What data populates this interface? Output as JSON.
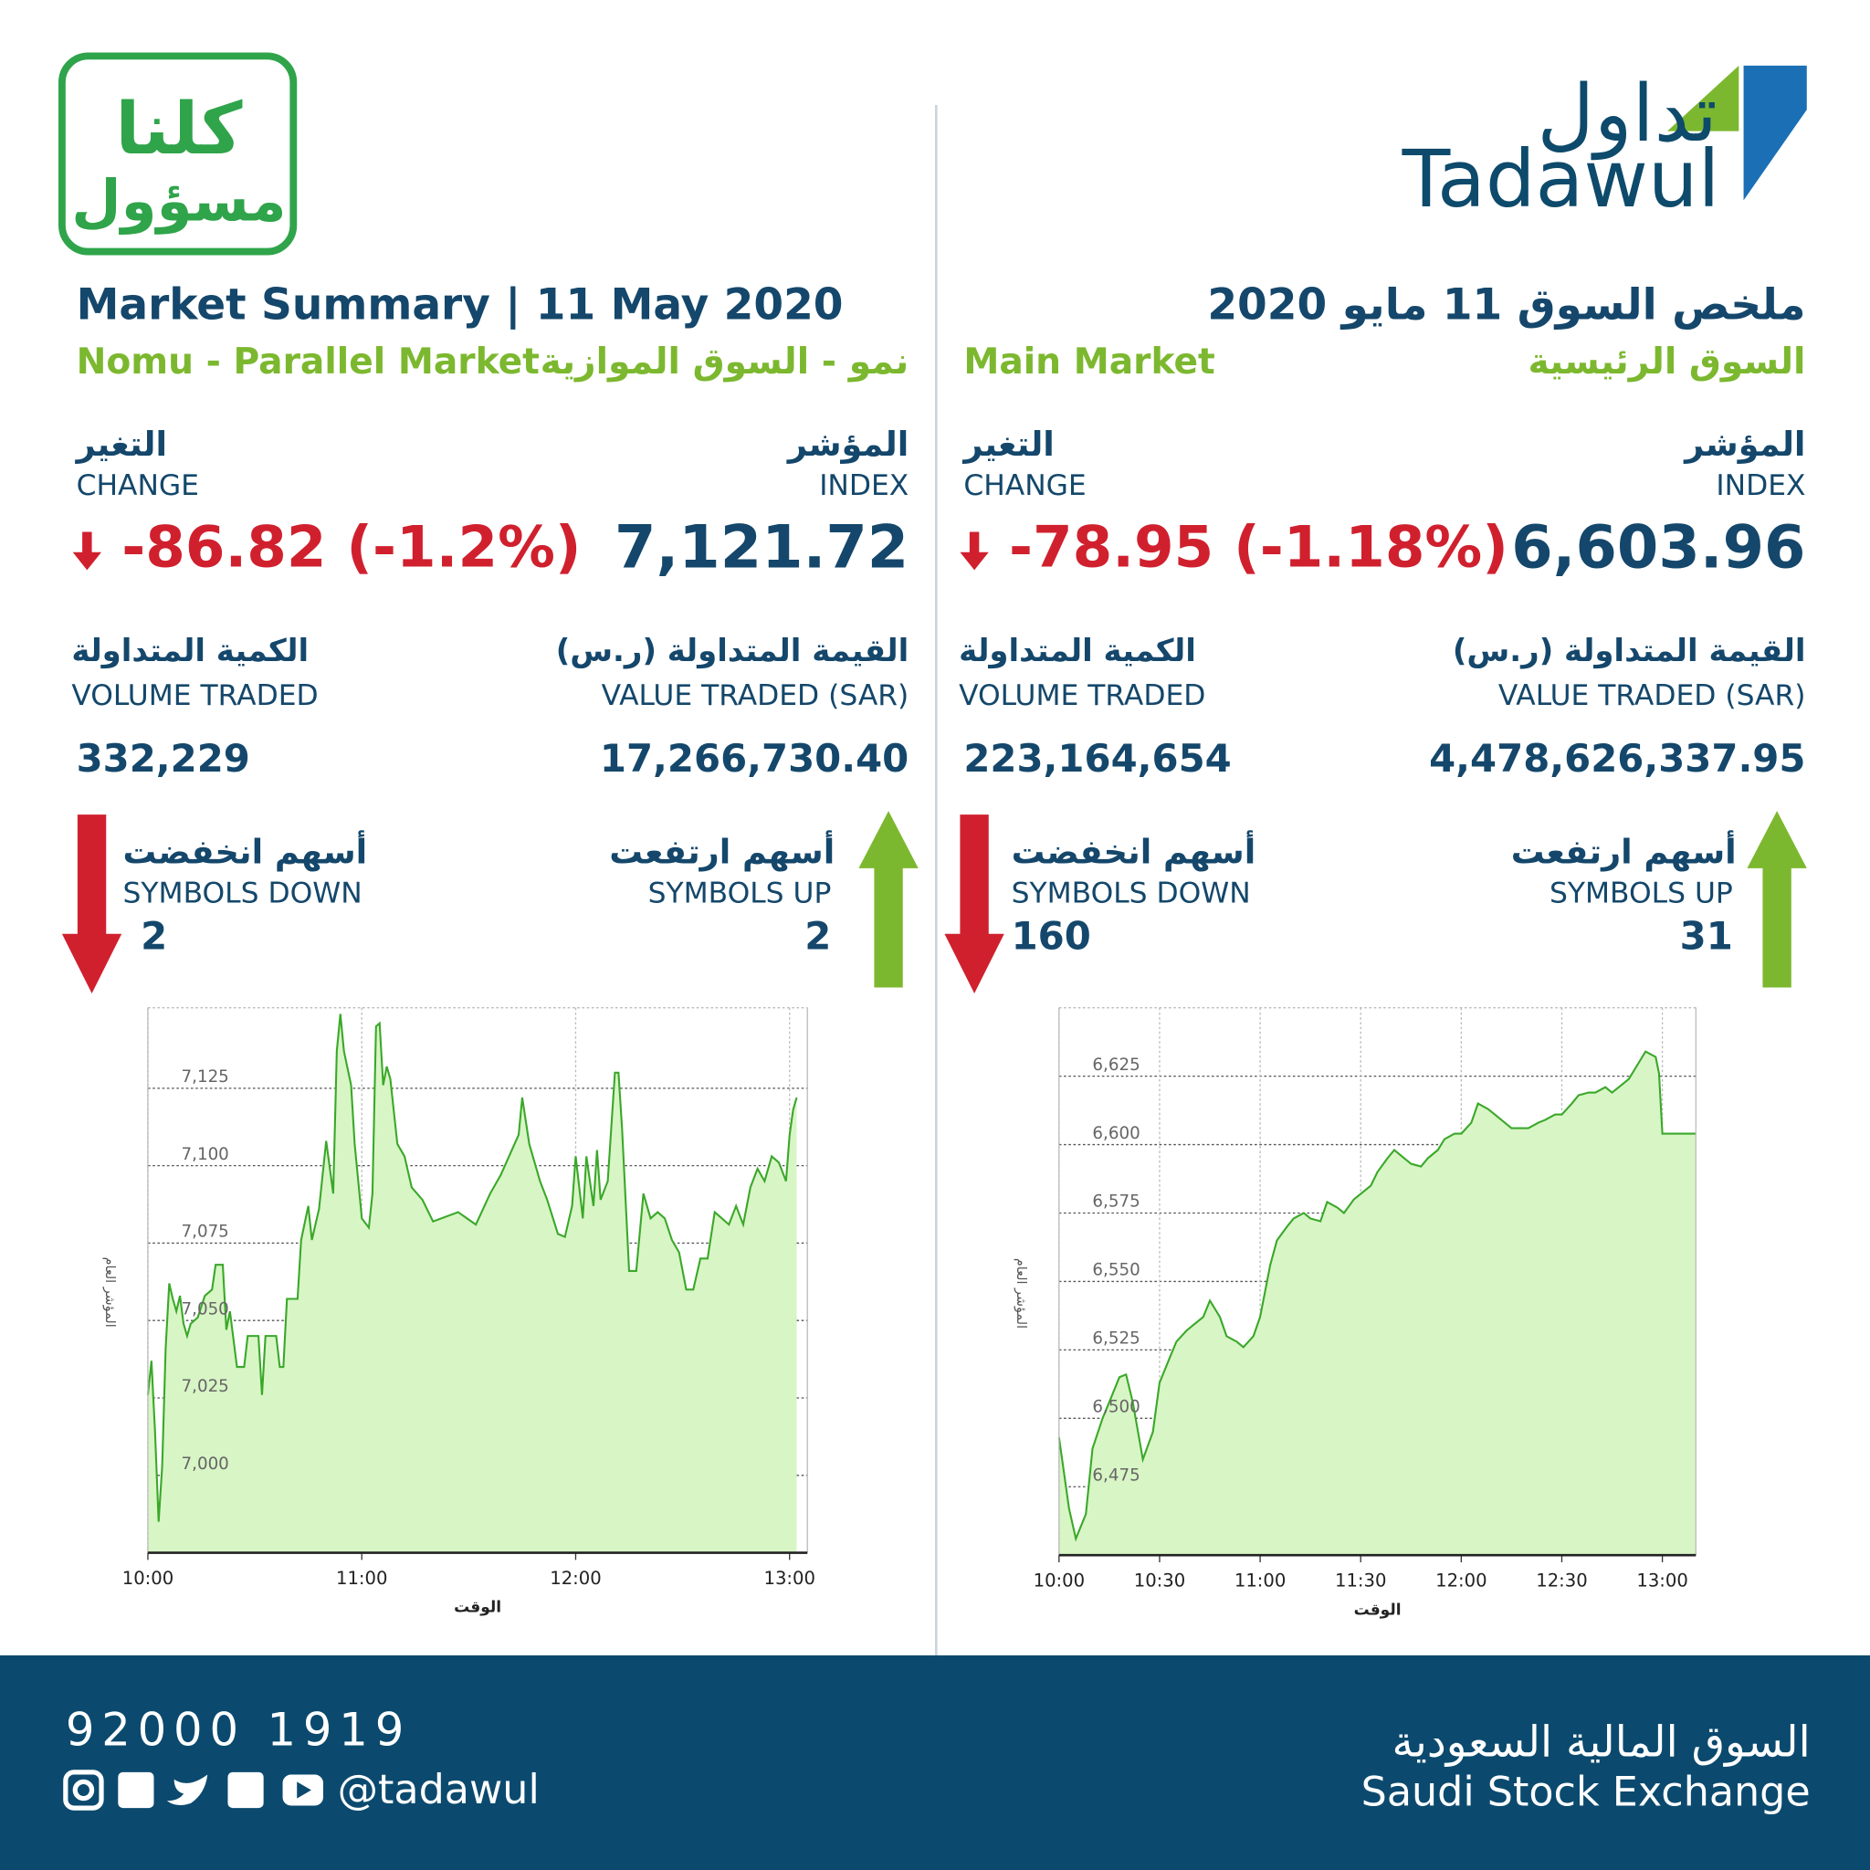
{
  "header": {
    "campaign_logo": [
      "كلنا",
      "مسؤول"
    ],
    "logo_ar": "تداول",
    "logo_en": "Tadawul",
    "title_en": "Market Summary | 11 May 2020",
    "title_ar": "ملخص السوق 11 مايو 2020"
  },
  "markets": [
    {
      "name_en": "Nomu - Parallel Market",
      "name_ar": "نمو - السوق الموازية",
      "index_label_ar": "المؤشر",
      "index_label_en": "INDEX",
      "index": "7,121.72",
      "change_label_ar": "التغير",
      "change_label_en": "CHANGE",
      "change": "-86.82 (-1.2%)",
      "value_label_ar": "القيمة المتداولة (ر.س)",
      "value_label_en": "VALUE TRADED (SAR)",
      "value": "17,266,730.40",
      "volume_label_ar": "الكمية المتداولة",
      "volume_label_en": "VOLUME TRADED",
      "volume": "332,229",
      "up_label_ar": "أسهم ارتفعت",
      "up_label_en": "SYMBOLS UP",
      "up": "2",
      "down_label_ar": "أسهم انخفضت",
      "down_label_en": "SYMBOLS DOWN",
      "down": "2"
    },
    {
      "name_en": "Main Market",
      "name_ar": "السوق الرئيسية",
      "index_label_ar": "المؤشر",
      "index_label_en": "INDEX",
      "index": "6,603.96",
      "change_label_ar": "التغير",
      "change_label_en": "CHANGE",
      "change": "-78.95 (-1.18%)",
      "value_label_ar": "القيمة المتداولة (ر.س)",
      "value_label_en": "VALUE TRADED (SAR)",
      "value": "4,478,626,337.95",
      "volume_label_ar": "الكمية المتداولة",
      "volume_label_en": "VOLUME TRADED",
      "volume": "223,164,654",
      "up_label_ar": "أسهم ارتفعت",
      "up_label_en": "SYMBOLS UP",
      "up": "31",
      "down_label_ar": "أسهم انخفضت",
      "down_label_en": "SYMBOLS DOWN",
      "down": "160"
    }
  ],
  "chart_data": [
    {
      "type": "line",
      "xlabel": "الوقت",
      "ylabel": "المؤشر العام",
      "color": "#3aa829",
      "fill": "#d8f5c6",
      "grid": true,
      "x": [
        "10:00",
        "10:01",
        "10:02",
        "10:03",
        "10:04",
        "10:05",
        "10:06",
        "10:07",
        "10:08",
        "10:09",
        "10:10",
        "10:11",
        "10:12",
        "10:14",
        "10:16",
        "10:18",
        "10:19",
        "10:21",
        "10:22",
        "10:23",
        "10:25",
        "10:27",
        "10:28",
        "10:31",
        "10:32",
        "10:33",
        "10:36",
        "10:37",
        "10:38",
        "10:39",
        "10:42",
        "10:43",
        "10:45",
        "10:46",
        "10:48",
        "10:50",
        "10:52",
        "10:53",
        "10:54",
        "10:55",
        "10:57",
        "10:58",
        "11:00",
        "11:02",
        "11:03",
        "11:04",
        "11:05",
        "11:06",
        "11:07",
        "11:08",
        "11:10",
        "11:12",
        "11:14",
        "11:17",
        "11:20",
        "11:27",
        "11:32",
        "11:36",
        "11:39",
        "11:44",
        "11:45",
        "11:47",
        "11:50",
        "11:52",
        "11:55",
        "11:57",
        "11:59",
        "12:00",
        "12:02",
        "12:03",
        "12:05",
        "12:06",
        "12:07",
        "12:09",
        "12:11",
        "12:12",
        "12:13",
        "12:15",
        "12:17",
        "12:19",
        "12:21",
        "12:23",
        "12:25",
        "12:27",
        "12:29",
        "12:31",
        "12:33",
        "12:35",
        "12:37",
        "12:39",
        "12:41",
        "12:43",
        "12:45",
        "12:47",
        "12:49",
        "12:51",
        "12:53",
        "12:55",
        "12:57",
        "12:59",
        "13:00",
        "13:01",
        "13:02"
      ],
      "values": [
        7026,
        7037,
        7014,
        6985,
        7003,
        7041,
        7062,
        7057,
        7053,
        7058,
        7049,
        7045,
        7049,
        7051,
        7058,
        7060,
        7068,
        7068,
        7047,
        7053,
        7035,
        7035,
        7045,
        7045,
        7026,
        7045,
        7045,
        7035,
        7035,
        7057,
        7057,
        7076,
        7087,
        7076,
        7086,
        7108,
        7091,
        7137,
        7149,
        7137,
        7126,
        7107,
        7083,
        7080,
        7091,
        7145,
        7146,
        7126,
        7132,
        7128,
        7107,
        7103,
        7093,
        7089,
        7082,
        7085,
        7081,
        7091,
        7097,
        7110,
        7122,
        7107,
        7095,
        7089,
        7078,
        7077,
        7087,
        7103,
        7083,
        7103,
        7087,
        7105,
        7089,
        7095,
        7130,
        7130,
        7112,
        7066,
        7066,
        7091,
        7083,
        7085,
        7083,
        7076,
        7072,
        7060,
        7060,
        7070,
        7070,
        7085,
        7083,
        7081,
        7087,
        7081,
        7093,
        7099,
        7095,
        7103,
        7101,
        7095,
        7110,
        7118,
        7122
      ],
      "xlim": [
        "10:00",
        "13:05"
      ],
      "xticks": [
        "10:00",
        "11:00",
        "12:00",
        "13:00"
      ],
      "ylim": [
        6975,
        7151
      ],
      "yticks": [
        {
          "value": 7000,
          "label": "7,000"
        },
        {
          "value": 7025,
          "label": "7,025"
        },
        {
          "value": 7050,
          "label": "7,050"
        },
        {
          "value": 7075,
          "label": "7,075"
        },
        {
          "value": 7100,
          "label": "7,100"
        },
        {
          "value": 7125,
          "label": "7,125"
        }
      ]
    },
    {
      "type": "line",
      "xlabel": "الوقت",
      "ylabel": "المؤشر العام",
      "color": "#3aa829",
      "fill": "#d8f5c6",
      "grid": true,
      "x": [
        "10:00",
        "10:03",
        "10:05",
        "10:08",
        "10:10",
        "10:13",
        "10:15",
        "10:18",
        "10:20",
        "10:22",
        "10:25",
        "10:28",
        "10:30",
        "10:33",
        "10:35",
        "10:38",
        "10:40",
        "10:43",
        "10:45",
        "10:48",
        "10:50",
        "10:53",
        "10:55",
        "10:58",
        "11:00",
        "11:03",
        "11:05",
        "11:08",
        "11:10",
        "11:13",
        "11:15",
        "11:18",
        "11:20",
        "11:23",
        "11:25",
        "11:28",
        "11:30",
        "11:33",
        "11:35",
        "11:38",
        "11:40",
        "11:43",
        "11:45",
        "11:48",
        "11:50",
        "11:53",
        "11:55",
        "11:58",
        "12:00",
        "12:03",
        "12:05",
        "12:08",
        "12:10",
        "12:13",
        "12:15",
        "12:18",
        "12:20",
        "12:23",
        "12:25",
        "12:28",
        "12:30",
        "12:33",
        "12:35",
        "12:38",
        "12:40",
        "12:43",
        "12:45",
        "12:48",
        "12:50",
        "12:53",
        "12:55",
        "12:58",
        "12:59",
        "13:00",
        "13:10"
      ],
      "values": [
        6493,
        6467,
        6456,
        6465,
        6489,
        6500,
        6506,
        6515,
        6516,
        6506,
        6485,
        6495,
        6513,
        6522,
        6528,
        6532,
        6534,
        6537,
        6543,
        6537,
        6530,
        6528,
        6526,
        6530,
        6537,
        6556,
        6565,
        6570,
        6573,
        6575,
        6573,
        6572,
        6579,
        6577,
        6575,
        6580,
        6582,
        6585,
        6590,
        6595,
        6598,
        6595,
        6593,
        6592,
        6595,
        6598,
        6602,
        6604,
        6604,
        6608,
        6615,
        6613,
        6611,
        6608,
        6606,
        6606,
        6606,
        6608,
        6609,
        6611,
        6611,
        6615,
        6618,
        6619,
        6619,
        6621,
        6619,
        6622,
        6624,
        6630,
        6634,
        6632,
        6626,
        6604,
        6604
      ],
      "xlim": [
        "10:00",
        "13:10"
      ],
      "xticks": [
        "10:00",
        "10:30",
        "11:00",
        "11:30",
        "12:00",
        "12:30",
        "13:00"
      ],
      "ylim": [
        6450,
        6650
      ],
      "yticks": [
        {
          "value": 6475,
          "label": "6,475"
        },
        {
          "value": 6500,
          "label": "6,500"
        },
        {
          "value": 6525,
          "label": "6,525"
        },
        {
          "value": 6550,
          "label": "6,550"
        },
        {
          "value": 6575,
          "label": "6,575"
        },
        {
          "value": 6600,
          "label": "6,600"
        },
        {
          "value": 6625,
          "label": "6,625"
        }
      ]
    }
  ],
  "footer": {
    "phone": "92000 1919",
    "handle": "@tadawul",
    "exchange_ar": "السوق المالية السعودية",
    "exchange_en": "Saudi Stock Exchange"
  }
}
